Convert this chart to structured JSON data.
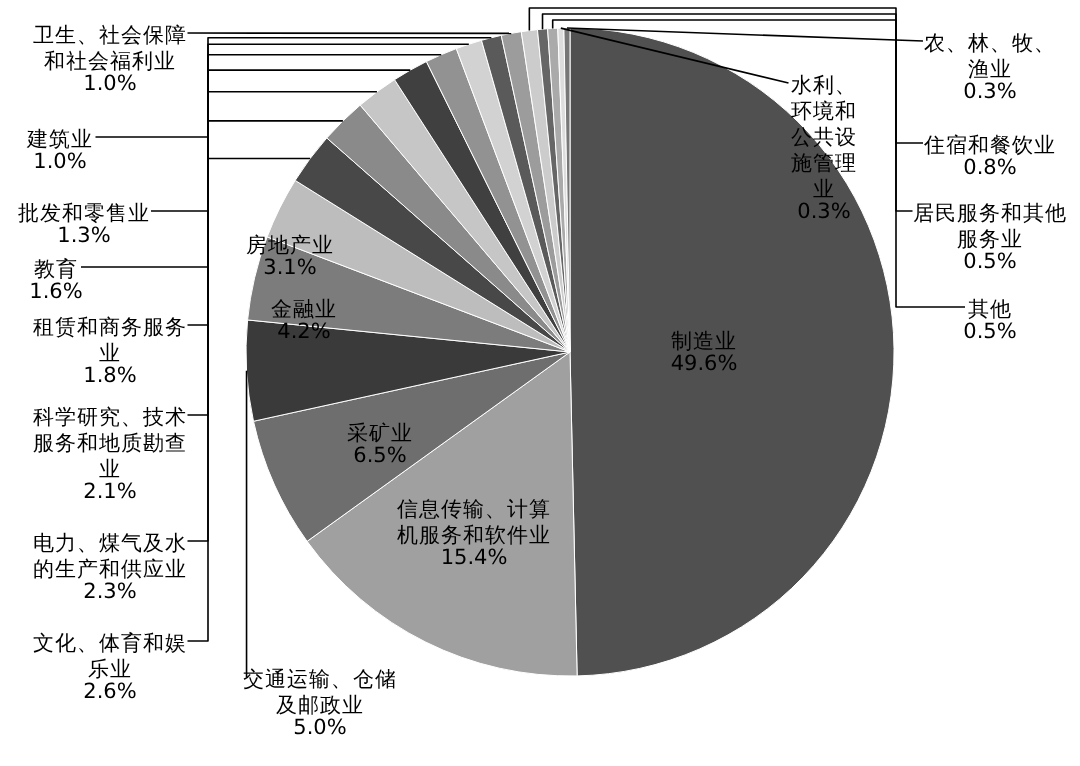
{
  "chart_data": {
    "type": "pie",
    "value_labels": [
      "49.6%",
      "15.4%",
      "6.5%",
      "5.0%",
      "4.2%",
      "3.1%",
      "2.6%",
      "2.3%",
      "2.1%",
      "1.8%",
      "1.6%",
      "1.3%",
      "1.0%",
      "1.0%",
      "0.8%",
      "0.5%",
      "0.5%",
      "0.3%",
      "0.3%"
    ],
    "categories": [
      "制造业",
      "信息传输、计算机服务和软件业",
      "采矿业",
      "交通运输、仓储及邮政业",
      "金融业",
      "房地产业",
      "文化、体育和娱乐业",
      "电力、煤气及水的生产和供应业",
      "科学研究、技术服务和地质勘查业",
      "租赁和商务服务业",
      "教育",
      "批发和零售业",
      "建筑业",
      "卫生、社会保障和社会福利业",
      "住宿和餐饮业",
      "居民服务和其他服务业",
      "其他",
      "水利、环境和公共设施管理业",
      "农、林、牧、渔业"
    ],
    "values": [
      49.6,
      15.4,
      6.5,
      5.0,
      4.2,
      3.1,
      2.6,
      2.3,
      2.1,
      1.8,
      1.6,
      1.3,
      1.0,
      1.0,
      0.8,
      0.5,
      0.5,
      0.3,
      0.3
    ],
    "colors": [
      "#505050",
      "#a0a0a0",
      "#6e6e6e",
      "#3a3a3a",
      "#7c7c7c",
      "#bdbdbd",
      "#484848",
      "#8a8a8a",
      "#c6c6c6",
      "#404040",
      "#929292",
      "#d2d2d2",
      "#5a5a5a",
      "#9c9c9c",
      "#cccccc",
      "#666666",
      "#aaaaaa",
      "#dddddd",
      "#777777"
    ]
  }
}
